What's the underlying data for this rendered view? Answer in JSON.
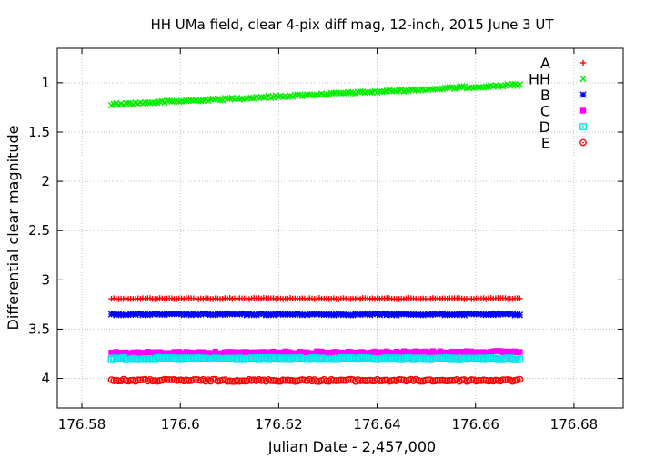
{
  "chart_data": {
    "type": "scatter",
    "title": "HH UMa field, clear 4-pix diff mag, 12-inch, 2015 June 3 UT",
    "xlabel": "Julian Date - 2,457,000",
    "ylabel": "Differential clear magnitude",
    "xlim": [
      176.575,
      176.69
    ],
    "ylim": [
      4.3,
      0.65
    ],
    "y_reversed": true,
    "grid": true,
    "legend_position": "top-right",
    "x_ticks": [
      176.58,
      176.6,
      176.62,
      176.64,
      176.66,
      176.68
    ],
    "x_tick_labels": [
      "176.58",
      "176.6",
      "176.62",
      "176.64",
      "176.66",
      "176.68"
    ],
    "y_ticks": [
      1,
      1.5,
      2,
      2.5,
      3,
      3.5,
      4
    ],
    "y_tick_labels": [
      "1",
      "1.5",
      "2",
      "2.5",
      "3",
      "3.5",
      "4"
    ],
    "x_range": [
      176.586,
      176.669
    ],
    "series": [
      {
        "name": "A",
        "marker": "plus",
        "color": "#ff0000",
        "y_start": 3.19,
        "y_end": 3.19,
        "scatter": 0.006
      },
      {
        "name": "HH",
        "marker": "cross",
        "color": "#00ee00",
        "y_start": 1.22,
        "y_end": 1.02,
        "scatter": 0.01
      },
      {
        "name": "B",
        "marker": "star",
        "color": "#0000ff",
        "y_start": 3.35,
        "y_end": 3.35,
        "scatter": 0.008
      },
      {
        "name": "C",
        "marker": "filled-square",
        "color": "#ff00ff",
        "y_start": 3.74,
        "y_end": 3.73,
        "scatter": 0.01
      },
      {
        "name": "D",
        "marker": "open-square",
        "color": "#00e5e5",
        "y_start": 3.8,
        "y_end": 3.8,
        "scatter": 0.01
      },
      {
        "name": "E",
        "marker": "circle-dot",
        "color": "#ff0000",
        "y_start": 4.02,
        "y_end": 4.02,
        "scatter": 0.01
      }
    ]
  }
}
